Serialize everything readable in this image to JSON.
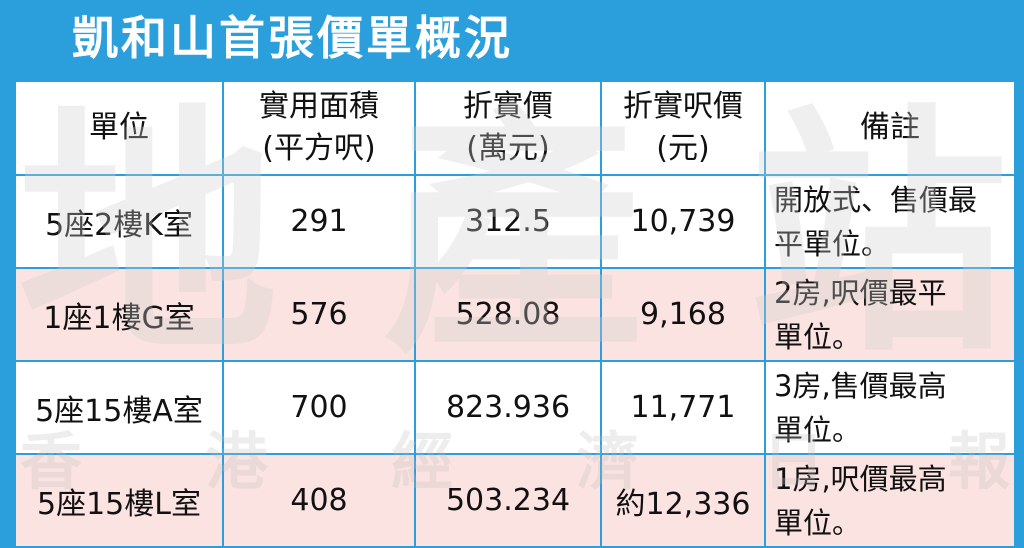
{
  "title": "凱和山首張價單概況",
  "headers": [
    {
      "line1": "單位",
      "line2": ""
    },
    {
      "line1": "實用面積",
      "line2": "(平方呎)"
    },
    {
      "line1": "折實價",
      "line2": "(萬元)"
    },
    {
      "line1": "折實呎價",
      "line2": "(元)"
    },
    {
      "line1": "備註",
      "line2": ""
    }
  ],
  "rows": [
    {
      "unit": "5座2樓K室",
      "area": "291",
      "price": "312.5",
      "price_per_sqft": "10,739",
      "remark": "開放式、售價最\n平單位。"
    },
    {
      "unit": "1座1樓G室",
      "area": "576",
      "price": "528.08",
      "price_per_sqft": "9,168",
      "remark": "2房,呎價最平\n單位。"
    },
    {
      "unit": "5座15樓A室",
      "area": "700",
      "price": "823.936",
      "price_per_sqft": "11,771",
      "remark": "3房,售價最高\n單位。"
    },
    {
      "unit": "5座15樓L室",
      "area": "408",
      "price": "503.234",
      "price_per_sqft": "約12,336",
      "remark": "1房,呎價最高\n單位。"
    }
  ],
  "colors": {
    "header_band": "#2b9fdc",
    "grid_lines": "#2b9fdc",
    "row_white": "#ffffff",
    "row_pink": "#fbe3e1",
    "title_text": "#ffffff"
  },
  "watermark": {
    "big": [
      "地",
      "產",
      "站"
    ],
    "small": [
      "香",
      "港",
      "經",
      "濟",
      "日",
      "報"
    ]
  }
}
